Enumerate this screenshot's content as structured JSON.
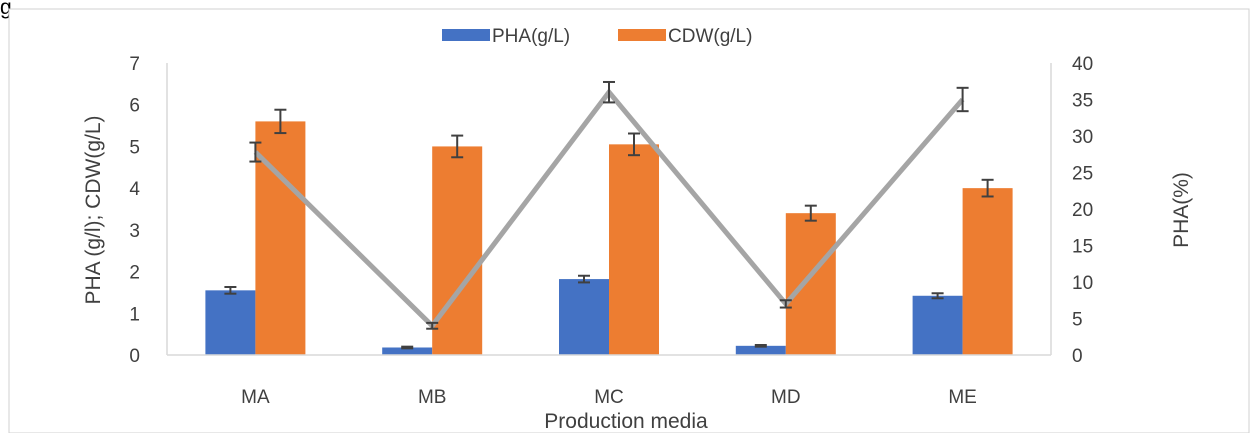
{
  "page": {
    "corner_label": "g"
  },
  "chart_data": {
    "type": "bar",
    "categories": [
      "MA",
      "MB",
      "MC",
      "MD",
      "ME"
    ],
    "xlabel": "Production media",
    "ylabel": "PHA (g/l); CDW(g/L)",
    "y2label": "PHA(%)",
    "ylim": [
      0,
      7
    ],
    "yticks": [
      "0",
      "1",
      "2",
      "3",
      "4",
      "5",
      "6",
      "7"
    ],
    "y2lim": [
      0,
      40
    ],
    "y2ticks": [
      "0",
      "5",
      "10",
      "15",
      "20",
      "25",
      "30",
      "35",
      "40"
    ],
    "grid": false,
    "legend_position": "top",
    "series": [
      {
        "name": "PHA(g/L)",
        "type": "bar",
        "axis": "left",
        "color": "#4472C4",
        "values": [
          1.55,
          0.18,
          1.82,
          0.22,
          1.42
        ],
        "errors": [
          0.08,
          0.02,
          0.08,
          0.02,
          0.06
        ]
      },
      {
        "name": "CDW(g/L)",
        "type": "bar",
        "axis": "left",
        "color": "#ED7D31",
        "values": [
          5.6,
          5.0,
          5.05,
          3.4,
          4.0
        ],
        "errors": [
          0.28,
          0.26,
          0.26,
          0.18,
          0.2
        ]
      },
      {
        "name": "",
        "type": "line",
        "axis": "right",
        "color": "#A5A5A5",
        "values": [
          27.8,
          4.0,
          36.0,
          7.0,
          35.0
        ],
        "errors": [
          1.3,
          0.4,
          1.4,
          0.5,
          1.6
        ]
      }
    ]
  }
}
